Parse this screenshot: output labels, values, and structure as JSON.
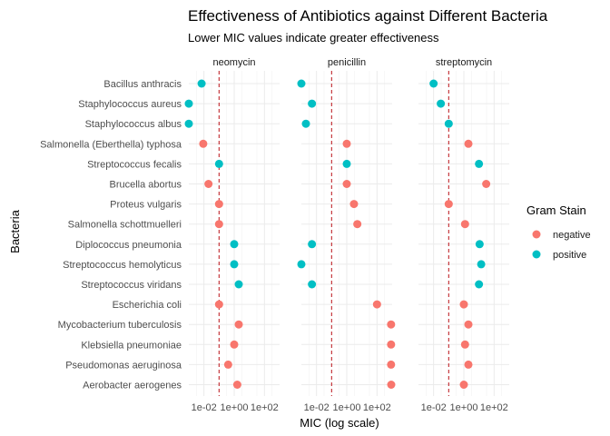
{
  "chart_data": {
    "type": "scatter",
    "title": "Effectiveness of Antibiotics against Different Bacteria",
    "subtitle": "Lower MIC values indicate greater effectiveness",
    "xlabel": "MIC (log scale)",
    "ylabel": "Bacteria",
    "x_scale": "log10",
    "xlim": [
      0.001,
      1000
    ],
    "x_tick_labels": [
      "1e-02",
      "1e+00",
      "1e+02"
    ],
    "x_tick_values": [
      0.01,
      1,
      100
    ],
    "reference_line": {
      "x": 0.1,
      "style": "dashed",
      "color": "#c0272d"
    },
    "panels": [
      "neomycin",
      "penicillin",
      "streptomycin"
    ],
    "categories": [
      "Bacillus anthracis",
      "Staphylococcus aureus",
      "Staphylococcus albus",
      "Salmonella (Eberthella) typhosa",
      "Streptococcus fecalis",
      "Brucella abortus",
      "Proteus vulgaris",
      "Salmonella schottmuelleri",
      "Diplococcus pneumonia",
      "Streptococcus hemolyticus",
      "Streptococcus viridans",
      "Escherichia coli",
      "Mycobacterium tuberculosis",
      "Klebsiella pneumoniae",
      "Pseudomonas aeruginosa",
      "Aerobacter aerogenes"
    ],
    "gram_stain": [
      "positive",
      "positive",
      "positive",
      "negative",
      "positive",
      "negative",
      "negative",
      "negative",
      "positive",
      "positive",
      "positive",
      "negative",
      "negative",
      "negative",
      "negative",
      "negative"
    ],
    "values": {
      "neomycin": [
        0.007,
        0.001,
        0.001,
        0.009,
        0.1,
        0.02,
        0.1,
        0.1,
        1.0,
        1.0,
        2.0,
        0.1,
        2.0,
        1.0,
        0.4,
        1.6
      ],
      "penicillin": [
        0.001,
        0.005,
        0.002,
        1.0,
        1.0,
        1.0,
        3.0,
        5.0,
        0.005,
        0.001,
        0.005,
        100,
        850,
        850,
        850,
        870
      ],
      "streptomycin": [
        0.01,
        0.03,
        0.1,
        2.0,
        10.0,
        30.0,
        0.1,
        1.2,
        11.0,
        14.0,
        10.0,
        1.0,
        2.0,
        1.2,
        2.0,
        1.0
      ]
    },
    "legend": {
      "title": "Gram Stain",
      "position": "right",
      "entries": [
        {
          "label": "negative",
          "color": "#f8766d"
        },
        {
          "label": "positive",
          "color": "#00bfc4"
        }
      ]
    },
    "grid": true
  }
}
